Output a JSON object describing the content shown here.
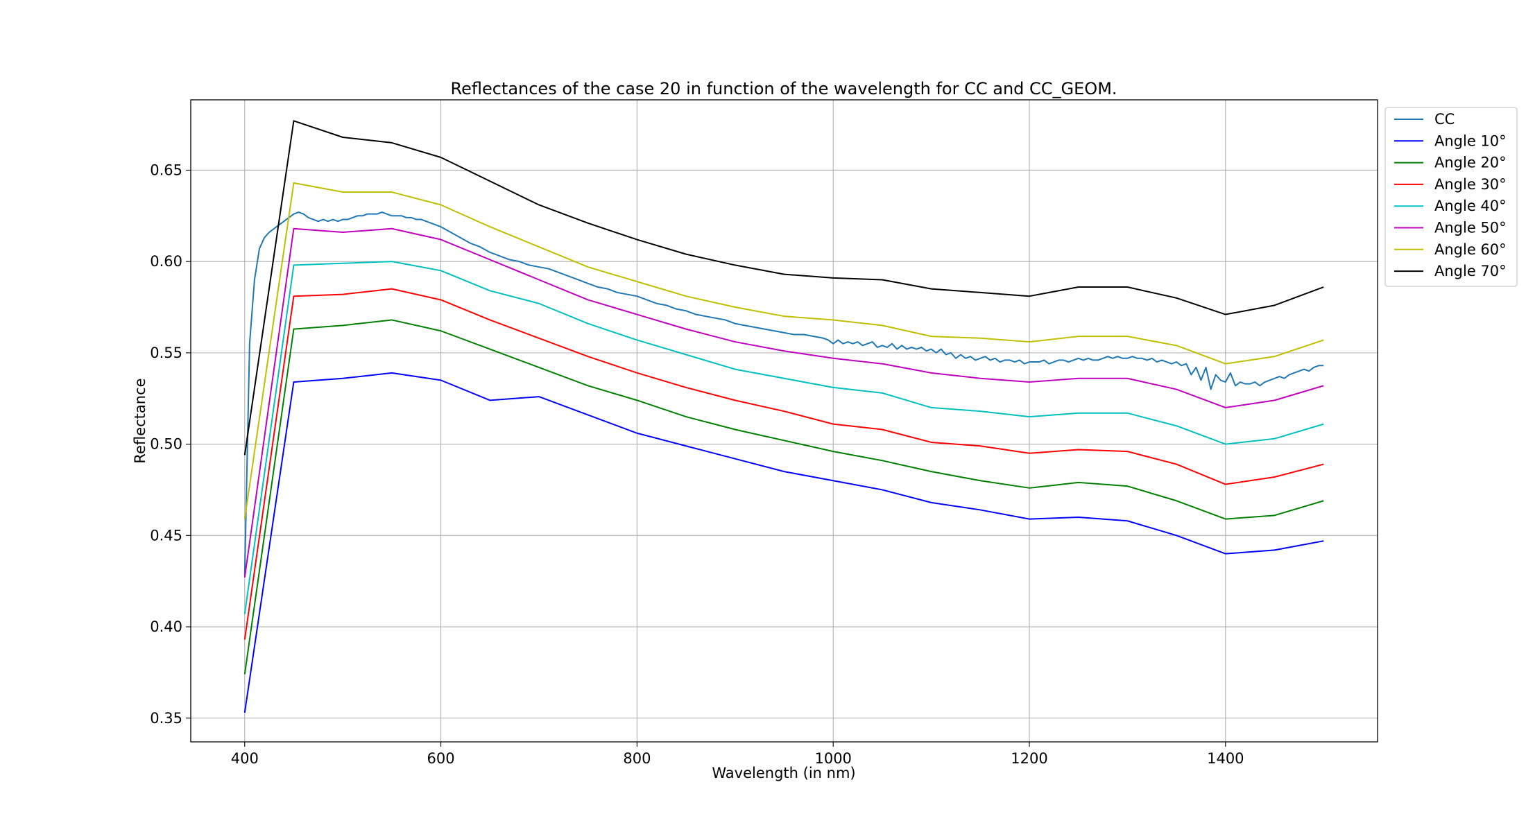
{
  "chart_data": {
    "type": "line",
    "title": "Reflectances of the case 20 in function of the wavelength for CC and CC_GEOM.",
    "xlabel": "Wavelength (in nm)",
    "ylabel": "Reflectance",
    "xlim": [
      345,
      1555
    ],
    "ylim": [
      0.337,
      0.6885
    ],
    "xticks": [
      400,
      600,
      800,
      1000,
      1200,
      1400
    ],
    "xtick_labels": [
      "400",
      "600",
      "800",
      "1000",
      "1200",
      "1400"
    ],
    "yticks": [
      0.35,
      0.4,
      0.45,
      0.5,
      0.55,
      0.6,
      0.65
    ],
    "ytick_labels": [
      "0.35",
      "0.40",
      "0.45",
      "0.50",
      "0.55",
      "0.60",
      "0.65"
    ],
    "grid": true,
    "legend_position": "outside-right-top",
    "series": [
      {
        "name": "CC",
        "color": "#1f77b4",
        "x": [
          400,
          405,
          410,
          415,
          420,
          425,
          430,
          435,
          440,
          445,
          450,
          455,
          460,
          465,
          470,
          475,
          480,
          485,
          490,
          495,
          500,
          505,
          510,
          515,
          520,
          525,
          530,
          535,
          540,
          545,
          550,
          555,
          560,
          565,
          570,
          575,
          580,
          585,
          590,
          595,
          600,
          610,
          620,
          630,
          640,
          650,
          660,
          670,
          680,
          690,
          700,
          710,
          720,
          730,
          740,
          750,
          760,
          770,
          780,
          790,
          800,
          810,
          820,
          830,
          840,
          850,
          860,
          870,
          880,
          890,
          900,
          910,
          920,
          930,
          940,
          950,
          960,
          970,
          980,
          990,
          995,
          1000,
          1005,
          1010,
          1015,
          1020,
          1025,
          1030,
          1035,
          1040,
          1045,
          1050,
          1055,
          1060,
          1065,
          1070,
          1075,
          1080,
          1085,
          1090,
          1095,
          1100,
          1105,
          1110,
          1115,
          1120,
          1125,
          1130,
          1135,
          1140,
          1145,
          1150,
          1155,
          1160,
          1165,
          1170,
          1175,
          1180,
          1185,
          1190,
          1195,
          1200,
          1205,
          1210,
          1215,
          1220,
          1225,
          1230,
          1235,
          1240,
          1245,
          1250,
          1255,
          1260,
          1265,
          1270,
          1275,
          1280,
          1285,
          1290,
          1295,
          1300,
          1305,
          1310,
          1315,
          1320,
          1325,
          1330,
          1335,
          1340,
          1345,
          1350,
          1355,
          1360,
          1365,
          1370,
          1375,
          1380,
          1385,
          1390,
          1395,
          1400,
          1405,
          1410,
          1415,
          1420,
          1425,
          1430,
          1435,
          1440,
          1445,
          1450,
          1455,
          1460,
          1465,
          1470,
          1475,
          1480,
          1485,
          1490,
          1495,
          1500
        ],
        "y": [
          0.428,
          0.555,
          0.59,
          0.607,
          0.613,
          0.616,
          0.618,
          0.62,
          0.622,
          0.624,
          0.626,
          0.627,
          0.626,
          0.624,
          0.623,
          0.622,
          0.623,
          0.622,
          0.623,
          0.622,
          0.623,
          0.623,
          0.624,
          0.625,
          0.625,
          0.626,
          0.626,
          0.626,
          0.627,
          0.626,
          0.625,
          0.625,
          0.625,
          0.624,
          0.624,
          0.623,
          0.623,
          0.622,
          0.621,
          0.62,
          0.619,
          0.616,
          0.613,
          0.61,
          0.608,
          0.605,
          0.603,
          0.601,
          0.6,
          0.598,
          0.597,
          0.596,
          0.594,
          0.592,
          0.59,
          0.588,
          0.586,
          0.585,
          0.583,
          0.582,
          0.581,
          0.579,
          0.577,
          0.576,
          0.574,
          0.573,
          0.571,
          0.57,
          0.569,
          0.568,
          0.566,
          0.565,
          0.564,
          0.563,
          0.562,
          0.561,
          0.56,
          0.56,
          0.559,
          0.558,
          0.557,
          0.555,
          0.557,
          0.555,
          0.556,
          0.555,
          0.556,
          0.554,
          0.555,
          0.556,
          0.553,
          0.554,
          0.553,
          0.555,
          0.552,
          0.554,
          0.552,
          0.553,
          0.552,
          0.553,
          0.551,
          0.552,
          0.55,
          0.552,
          0.549,
          0.55,
          0.547,
          0.549,
          0.547,
          0.548,
          0.546,
          0.547,
          0.548,
          0.546,
          0.547,
          0.545,
          0.546,
          0.546,
          0.545,
          0.546,
          0.544,
          0.545,
          0.545,
          0.545,
          0.546,
          0.544,
          0.545,
          0.546,
          0.546,
          0.545,
          0.546,
          0.547,
          0.546,
          0.547,
          0.546,
          0.546,
          0.547,
          0.548,
          0.547,
          0.548,
          0.547,
          0.547,
          0.548,
          0.547,
          0.547,
          0.546,
          0.547,
          0.545,
          0.546,
          0.545,
          0.544,
          0.545,
          0.543,
          0.544,
          0.538,
          0.542,
          0.535,
          0.542,
          0.53,
          0.538,
          0.535,
          0.534,
          0.539,
          0.532,
          0.534,
          0.533,
          0.533,
          0.534,
          0.532,
          0.534,
          0.535,
          0.536,
          0.537,
          0.536,
          0.538,
          0.539,
          0.54,
          0.541,
          0.54,
          0.542,
          0.543,
          0.543
        ]
      },
      {
        "name": "Angle 10°",
        "color": "#0000ff",
        "x": [
          400,
          450,
          500,
          550,
          600,
          650,
          700,
          750,
          800,
          850,
          900,
          950,
          1000,
          1050,
          1100,
          1150,
          1200,
          1250,
          1300,
          1350,
          1400,
          1450,
          1500
        ],
        "y": [
          0.353,
          0.534,
          0.536,
          0.539,
          0.535,
          0.524,
          0.526,
          0.516,
          0.506,
          0.499,
          0.492,
          0.485,
          0.48,
          0.475,
          0.468,
          0.464,
          0.459,
          0.46,
          0.458,
          0.45,
          0.44,
          0.442,
          0.447
        ]
      },
      {
        "name": "Angle 20°",
        "color": "#008000",
        "x": [
          400,
          450,
          500,
          550,
          600,
          650,
          700,
          750,
          800,
          850,
          900,
          950,
          1000,
          1050,
          1100,
          1150,
          1200,
          1250,
          1300,
          1350,
          1400,
          1450,
          1500
        ],
        "y": [
          0.374,
          0.563,
          0.565,
          0.568,
          0.562,
          0.552,
          0.542,
          0.532,
          0.524,
          0.515,
          0.508,
          0.502,
          0.496,
          0.491,
          0.485,
          0.48,
          0.476,
          0.479,
          0.477,
          0.469,
          0.459,
          0.461,
          0.469
        ]
      },
      {
        "name": "Angle 30°",
        "color": "#ff0000",
        "x": [
          400,
          450,
          500,
          550,
          600,
          650,
          700,
          750,
          800,
          850,
          900,
          950,
          1000,
          1050,
          1100,
          1150,
          1200,
          1250,
          1300,
          1350,
          1400,
          1450,
          1500
        ],
        "y": [
          0.393,
          0.581,
          0.582,
          0.585,
          0.579,
          0.568,
          0.558,
          0.548,
          0.539,
          0.531,
          0.524,
          0.518,
          0.511,
          0.508,
          0.501,
          0.499,
          0.495,
          0.497,
          0.496,
          0.489,
          0.478,
          0.482,
          0.489
        ]
      },
      {
        "name": "Angle 40°",
        "color": "#00bfbf",
        "x": [
          400,
          450,
          500,
          550,
          600,
          650,
          700,
          750,
          800,
          850,
          900,
          950,
          1000,
          1050,
          1100,
          1150,
          1200,
          1250,
          1300,
          1350,
          1400,
          1450,
          1500
        ],
        "y": [
          0.407,
          0.598,
          0.599,
          0.6,
          0.595,
          0.584,
          0.577,
          0.566,
          0.557,
          0.549,
          0.541,
          0.536,
          0.531,
          0.528,
          0.52,
          0.518,
          0.515,
          0.517,
          0.517,
          0.51,
          0.5,
          0.503,
          0.511
        ]
      },
      {
        "name": "Angle 50°",
        "color": "#bf00bf",
        "x": [
          400,
          450,
          500,
          550,
          600,
          650,
          700,
          750,
          800,
          850,
          900,
          950,
          1000,
          1050,
          1100,
          1150,
          1200,
          1250,
          1300,
          1350,
          1400,
          1450,
          1500
        ],
        "y": [
          0.427,
          0.618,
          0.616,
          0.618,
          0.612,
          0.601,
          0.59,
          0.579,
          0.571,
          0.563,
          0.556,
          0.551,
          0.547,
          0.544,
          0.539,
          0.536,
          0.534,
          0.536,
          0.536,
          0.53,
          0.52,
          0.524,
          0.532
        ]
      },
      {
        "name": "Angle 60°",
        "color": "#bfbf00",
        "x": [
          400,
          450,
          500,
          550,
          600,
          650,
          700,
          750,
          800,
          850,
          900,
          950,
          1000,
          1050,
          1100,
          1150,
          1200,
          1250,
          1300,
          1350,
          1400,
          1450,
          1500
        ],
        "y": [
          0.459,
          0.643,
          0.638,
          0.638,
          0.631,
          0.619,
          0.608,
          0.597,
          0.589,
          0.581,
          0.575,
          0.57,
          0.568,
          0.565,
          0.559,
          0.558,
          0.556,
          0.559,
          0.559,
          0.554,
          0.544,
          0.548,
          0.557
        ]
      },
      {
        "name": "Angle 70°",
        "color": "#000000",
        "x": [
          400,
          450,
          500,
          550,
          600,
          650,
          700,
          750,
          800,
          850,
          900,
          950,
          1000,
          1050,
          1100,
          1150,
          1200,
          1250,
          1300,
          1350,
          1400,
          1450,
          1500
        ],
        "y": [
          0.494,
          0.677,
          0.668,
          0.665,
          0.657,
          0.644,
          0.631,
          0.621,
          0.612,
          0.604,
          0.598,
          0.593,
          0.591,
          0.59,
          0.585,
          0.583,
          0.581,
          0.586,
          0.586,
          0.58,
          0.571,
          0.576,
          0.586
        ]
      }
    ]
  }
}
